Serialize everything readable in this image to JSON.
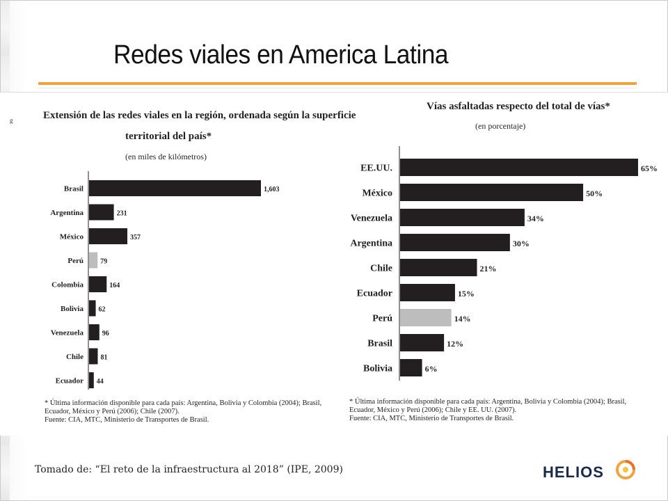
{
  "slide": {
    "title": "Redes viales en America Latina",
    "source": "Tomado de: “El reto de la infraestructura al 2018” (IPE, 2009)",
    "logo_text": "HELIOS",
    "left_mark": "g",
    "accent_color": "#f0a43f"
  },
  "chart_data": [
    {
      "type": "bar",
      "orientation": "horizontal",
      "title": "Extensión de las redes viales en la región, ordenada según la superficie territorial del país*",
      "subtitle": "(en miles de kilómetros)",
      "categories": [
        "Brasil",
        "Argentina",
        "México",
        "Perú",
        "Colombia",
        "Bolivia",
        "Venezuela",
        "Chile",
        "Ecuador"
      ],
      "values": [
        1603,
        231,
        357,
        79,
        164,
        62,
        96,
        81,
        44
      ],
      "value_labels": [
        "1,603",
        "231",
        "357",
        "79",
        "164",
        "62",
        "96",
        "81",
        "44"
      ],
      "highlight": "Perú",
      "colors": {
        "bar": "#231f20",
        "highlight": "#bdbdbd"
      },
      "footnote": [
        "* Última información disponible para cada país: Argentina, Bolivia y Colombia (2004); Brasil,",
        "Ecuador, México y Perú (2006); Chile (2007).",
        "Fuente: CIA, MTC, Ministerio de Transportes de Brasil."
      ]
    },
    {
      "type": "bar",
      "orientation": "horizontal",
      "title": "Vías asfaltadas respecto del total de vías*",
      "subtitle": "(en porcentaje)",
      "categories": [
        "EE.UU.",
        "México",
        "Venezuela",
        "Argentina",
        "Chile",
        "Ecuador",
        "Perú",
        "Brasil",
        "Bolivia"
      ],
      "values": [
        65,
        50,
        34,
        30,
        21,
        15,
        14,
        12,
        6
      ],
      "value_labels": [
        "65%",
        "50%",
        "34%",
        "30%",
        "21%",
        "15%",
        "14%",
        "12%",
        "6%"
      ],
      "highlight": "Perú",
      "colors": {
        "bar": "#231f20",
        "highlight": "#bdbdbd"
      },
      "footnote": [
        "* Última información disponible para cada país: Argentina, Bolivia y Colombia (2004); Brasil,",
        "Ecuador, México y Perú (2006); Chile y EE. UU. (2007).",
        "Fuente: CIA, MTC, Ministerio de Transportes de Brasil."
      ]
    }
  ]
}
